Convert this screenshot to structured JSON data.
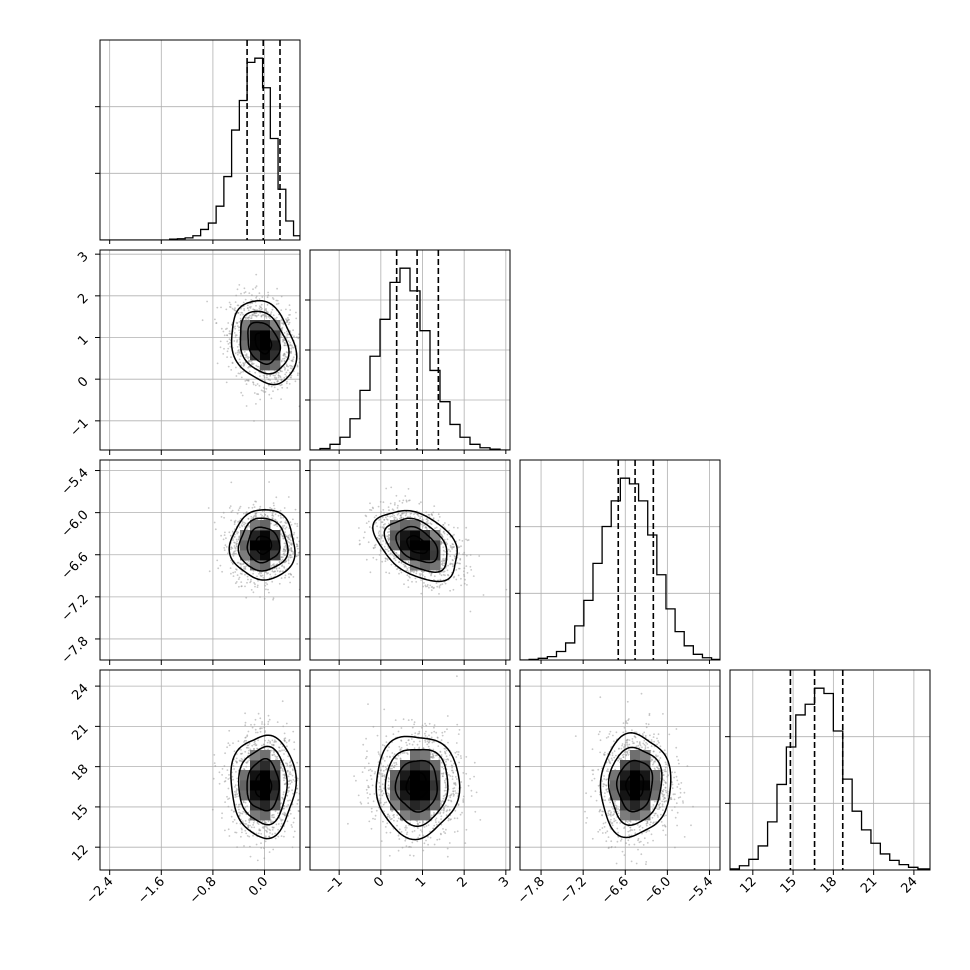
{
  "chart_data": {
    "type": "corner",
    "title": "",
    "parameters": [
      {
        "name": "",
        "ticks": [
          -2.4,
          -1.6,
          -0.8,
          0.0
        ],
        "tick_labels": [
          "−2.4",
          "−1.6",
          "−0.8",
          "0.0"
        ],
        "range": [
          -2.55,
          0.55
        ],
        "quantiles": [
          -0.27,
          -0.02,
          0.24
        ],
        "mean": -0.02,
        "sigma": 0.25,
        "hist_bin_edges": [
          -2.55,
          -2.43,
          -2.31,
          -2.19,
          -2.07,
          -1.95,
          -1.83,
          -1.71,
          -1.59,
          -1.47,
          -1.35,
          -1.23,
          -1.11,
          -0.99,
          -0.87,
          -0.75,
          -0.63,
          -0.51,
          -0.39,
          -0.27,
          -0.15,
          -0.03,
          0.09,
          0.21,
          0.33,
          0.45,
          0.55
        ],
        "hist_counts": [
          0,
          0,
          0,
          0,
          0,
          0,
          0,
          0,
          0,
          2,
          3,
          5,
          10,
          25,
          40,
          80,
          150,
          260,
          330,
          420,
          430,
          360,
          240,
          120,
          45,
          10
        ]
      },
      {
        "name": "",
        "ticks": [
          -1,
          0,
          1,
          2,
          3
        ],
        "tick_labels": [
          "−1",
          "0",
          "1",
          "2",
          "3"
        ],
        "range": [
          -1.7,
          3.1
        ],
        "quantiles": [
          0.38,
          0.87,
          1.38
        ],
        "mean": 0.87,
        "sigma": 0.5,
        "hist_bin_edges": [
          -1.7,
          -1.46,
          -1.22,
          -0.98,
          -0.74,
          -0.5,
          -0.26,
          -0.02,
          0.22,
          0.46,
          0.7,
          0.94,
          1.18,
          1.42,
          1.66,
          1.9,
          2.14,
          2.38,
          2.62,
          2.86,
          3.1
        ],
        "hist_counts": [
          0,
          5,
          20,
          45,
          110,
          210,
          330,
          460,
          590,
          640,
          560,
          420,
          280,
          170,
          90,
          45,
          20,
          8,
          3,
          0
        ]
      },
      {
        "name": "",
        "ticks": [
          -7.8,
          -7.2,
          -6.6,
          -6.0,
          -5.4
        ],
        "tick_labels": [
          "−7.8",
          "−7.2",
          "−6.6",
          "−6.0",
          "−5.4"
        ],
        "range": [
          -8.1,
          -5.25
        ],
        "quantiles": [
          -6.7,
          -6.46,
          -6.2
        ],
        "mean": -6.46,
        "sigma": 0.25,
        "hist_bin_edges": [
          -8.1,
          -7.97,
          -7.84,
          -7.71,
          -7.58,
          -7.45,
          -7.32,
          -7.19,
          -7.06,
          -6.93,
          -6.8,
          -6.67,
          -6.54,
          -6.41,
          -6.28,
          -6.15,
          -6.02,
          -5.89,
          -5.76,
          -5.63,
          -5.5,
          -5.37,
          -5.25
        ],
        "hist_counts": [
          0,
          2,
          6,
          12,
          30,
          60,
          120,
          210,
          340,
          470,
          560,
          640,
          620,
          560,
          440,
          300,
          180,
          100,
          50,
          20,
          8,
          2
        ]
      },
      {
        "name": "",
        "ticks": [
          12,
          15,
          18,
          21,
          24
        ],
        "tick_labels": [
          "12",
          "15",
          "18",
          "21",
          "24"
        ],
        "range": [
          10.3,
          25.2
        ],
        "quantiles": [
          14.8,
          16.6,
          18.7
        ],
        "mean": 16.6,
        "sigma": 1.9,
        "hist_bin_edges": [
          10.3,
          11.0,
          11.7,
          12.4,
          13.1,
          13.8,
          14.5,
          15.2,
          15.9,
          16.6,
          17.3,
          18.0,
          18.7,
          19.4,
          20.1,
          20.8,
          21.5,
          22.2,
          22.9,
          23.6,
          24.3,
          25.2
        ],
        "hist_counts": [
          2,
          8,
          20,
          45,
          90,
          160,
          230,
          290,
          310,
          340,
          330,
          260,
          170,
          110,
          75,
          50,
          30,
          18,
          10,
          5,
          2
        ]
      }
    ],
    "histogram_y_ticks": [
      [
        1,
        2
      ],
      [
        1,
        2,
        3
      ],
      [
        1,
        2
      ],
      [
        1,
        2
      ]
    ],
    "pairs": [
      {
        "x_param": 0,
        "y_param": 1,
        "x_center": -0.02,
        "y_center": 0.87,
        "x_sigma": 0.25,
        "y_sigma": 0.5,
        "correlation": -0.25
      },
      {
        "x_param": 0,
        "y_param": 2,
        "x_center": -0.02,
        "y_center": -6.46,
        "x_sigma": 0.25,
        "y_sigma": 0.25,
        "correlation": 0.0
      },
      {
        "x_param": 1,
        "y_param": 2,
        "x_center": 0.87,
        "y_center": -6.46,
        "x_sigma": 0.5,
        "y_sigma": 0.25,
        "correlation": -0.4
      },
      {
        "x_param": 0,
        "y_param": 3,
        "x_center": -0.02,
        "y_center": 16.6,
        "x_sigma": 0.25,
        "y_sigma": 1.9,
        "correlation": 0.0
      },
      {
        "x_param": 1,
        "y_param": 3,
        "x_center": 0.87,
        "y_center": 16.6,
        "x_sigma": 0.5,
        "y_sigma": 1.9,
        "correlation": 0.0
      },
      {
        "x_param": 2,
        "y_param": 3,
        "x_center": -6.46,
        "y_center": 16.6,
        "x_sigma": 0.25,
        "y_sigma": 1.9,
        "correlation": 0.05
      }
    ],
    "contour_levels_sigma": [
      0.5,
      1.0,
      1.5,
      2.0
    ],
    "grid": true,
    "legend": "none"
  }
}
